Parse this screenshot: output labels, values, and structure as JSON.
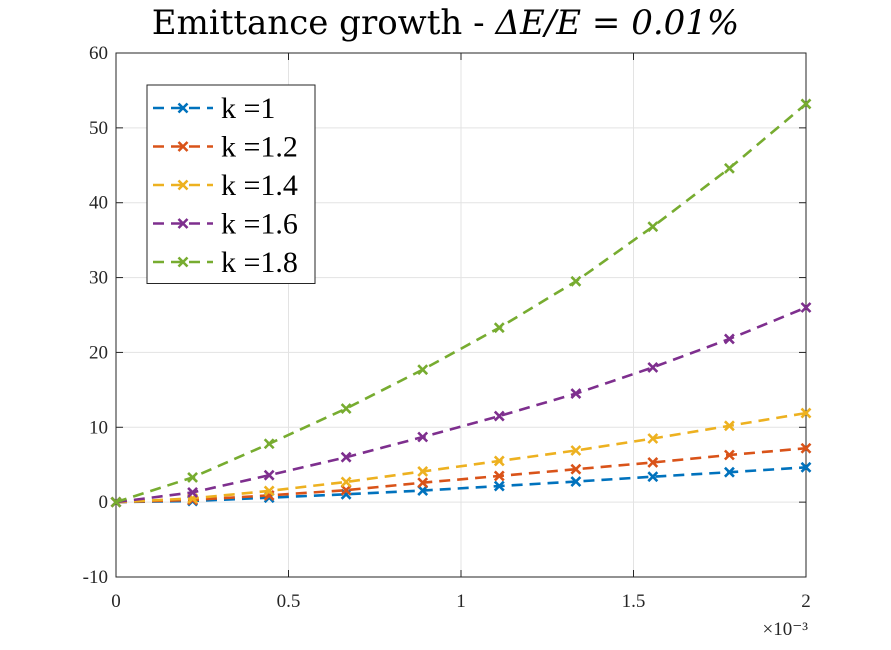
{
  "chart_data": {
    "type": "line",
    "title_main": "Emittance growth - ",
    "title_math": "ΔE/E = 0.01%",
    "xlabel": "",
    "ylabel": "",
    "x_scale_label": "×10⁻³",
    "xlim": [
      0,
      2
    ],
    "ylim": [
      -10,
      60
    ],
    "xticks": [
      0,
      0.5,
      1,
      1.5,
      2
    ],
    "xtick_labels": [
      "0",
      "0.5",
      "1",
      "1.5",
      "2"
    ],
    "yticks": [
      -10,
      0,
      10,
      20,
      30,
      40,
      50,
      60
    ],
    "ytick_labels": [
      "-10",
      "0",
      "10",
      "20",
      "30",
      "40",
      "50",
      "60"
    ],
    "grid": true,
    "legend_position": "top-left",
    "marker": "x",
    "line_style": "dashed",
    "x": [
      0,
      0.222,
      0.444,
      0.667,
      0.889,
      1.111,
      1.333,
      1.556,
      1.778,
      2.0
    ],
    "series": [
      {
        "name": "k =1",
        "color": "#0072BD",
        "values": [
          0,
          0.15,
          0.6,
          1.05,
          1.55,
          2.15,
          2.75,
          3.4,
          4.0,
          4.65
        ]
      },
      {
        "name": "k =1.2",
        "color": "#D95319",
        "values": [
          0,
          0.3,
          0.9,
          1.6,
          2.6,
          3.5,
          4.4,
          5.3,
          6.3,
          7.2
        ]
      },
      {
        "name": "k =1.4",
        "color": "#EDB120",
        "values": [
          0,
          0.5,
          1.5,
          2.7,
          4.1,
          5.5,
          6.9,
          8.5,
          10.2,
          11.9
        ]
      },
      {
        "name": "k =1.6",
        "color": "#7E2F8E",
        "values": [
          0,
          1.3,
          3.6,
          6.0,
          8.7,
          11.5,
          14.5,
          18.0,
          21.8,
          26.0
        ]
      },
      {
        "name": "k =1.8",
        "color": "#77AC30",
        "values": [
          0,
          3.3,
          7.8,
          12.5,
          17.7,
          23.3,
          29.5,
          36.8,
          44.6,
          53.2
        ]
      }
    ]
  }
}
